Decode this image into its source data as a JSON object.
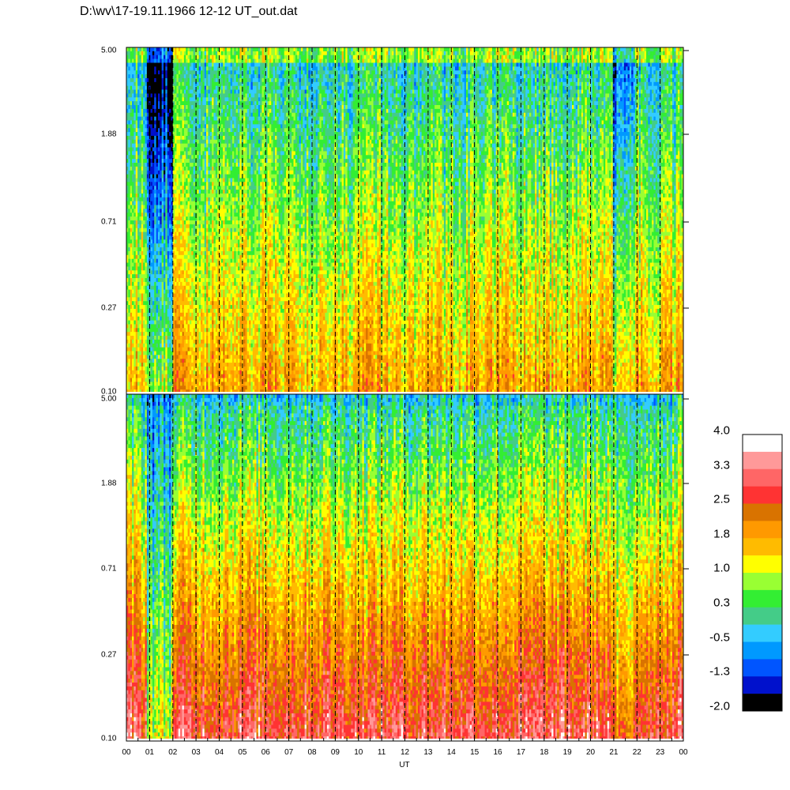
{
  "title": "D:\\wv\\17-19.11.1966  12-12 UT_out.dat",
  "chart_data": {
    "type": "heatmap",
    "x_axis": {
      "label": "UT",
      "ticks": [
        "00",
        "01",
        "02",
        "03",
        "04",
        "05",
        "06",
        "07",
        "08",
        "09",
        "10",
        "11",
        "12",
        "13",
        "14",
        "15",
        "16",
        "17",
        "18",
        "19",
        "20",
        "21",
        "22",
        "23",
        "00"
      ],
      "range_hours": [
        0,
        24
      ]
    },
    "panels": [
      {
        "name": "upper",
        "y_ticks": [
          "5.00",
          "1.88",
          "0.71",
          "0.27",
          "0.10"
        ],
        "y_range": [
          0.1,
          5.0
        ],
        "y_scale": "log"
      },
      {
        "name": "lower",
        "y_ticks": [
          "5.00",
          "1.88",
          "0.71",
          "0.27",
          "0.10"
        ],
        "y_range": [
          0.1,
          5.0
        ],
        "y_scale": "log"
      }
    ],
    "colorbar": {
      "labels": [
        "4.0",
        "3.3",
        "2.5",
        "1.8",
        "1.0",
        "0.3",
        "-0.5",
        "-1.3",
        "-2.0"
      ],
      "range": [
        -2.0,
        4.0
      ],
      "colors": [
        "#ffffff",
        "#ff9999",
        "#ff6666",
        "#ff3333",
        "#d97300",
        "#ff9900",
        "#ffbb00",
        "#ffff00",
        "#99ff33",
        "#33ee33",
        "#44cc88",
        "#33ccff",
        "#0099ff",
        "#0055ff",
        "#0011cc",
        "#000000"
      ]
    },
    "vertical_dashed_lines": "hourly"
  }
}
